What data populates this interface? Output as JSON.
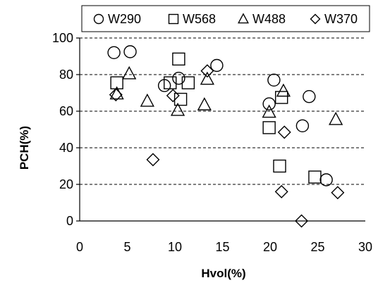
{
  "chart_data": {
    "type": "scatter",
    "xlabel": "Hvol(%)",
    "ylabel": "PCH(%)",
    "xlim": [
      0,
      30
    ],
    "ylim": [
      0,
      100
    ],
    "x_ticks": [
      0,
      5,
      10,
      15,
      20,
      25,
      30
    ],
    "y_ticks": [
      0,
      20,
      40,
      60,
      80,
      100
    ],
    "y_tick_labels": [
      "0",
      "20",
      "40",
      "60",
      "80",
      "100"
    ],
    "x_tick_labels": [
      "0",
      "5",
      "10",
      "15",
      "20",
      "25",
      "30"
    ],
    "grid": "horizontal dashed",
    "legend_position": "top",
    "series": [
      {
        "name": "W290",
        "marker": "circle",
        "points": [
          [
            3.6,
            92
          ],
          [
            5.3,
            92.5
          ],
          [
            8.9,
            74
          ],
          [
            10.4,
            78
          ],
          [
            14.4,
            85
          ],
          [
            19.9,
            64
          ],
          [
            20.4,
            77
          ],
          [
            23.4,
            52
          ],
          [
            24.1,
            68
          ],
          [
            25.9,
            22.5
          ]
        ]
      },
      {
        "name": "W568",
        "marker": "square",
        "points": [
          [
            3.9,
            75.5
          ],
          [
            9.5,
            75.5
          ],
          [
            10.4,
            88.5
          ],
          [
            10.6,
            66.5
          ],
          [
            11.4,
            75.5
          ],
          [
            19.9,
            51
          ],
          [
            21.0,
            30
          ],
          [
            21.2,
            67.5
          ],
          [
            24.7,
            24
          ]
        ]
      },
      {
        "name": "W488",
        "marker": "triangle",
        "points": [
          [
            3.9,
            69.5
          ],
          [
            5.2,
            80.5
          ],
          [
            7.1,
            65.5
          ],
          [
            10.3,
            60.5
          ],
          [
            13.1,
            63.5
          ],
          [
            13.4,
            77.5
          ],
          [
            19.9,
            59.5
          ],
          [
            21.4,
            71
          ],
          [
            26.9,
            55.5
          ]
        ]
      },
      {
        "name": "W370",
        "marker": "diamond",
        "points": [
          [
            3.8,
            69
          ],
          [
            7.7,
            33.5
          ],
          [
            9.8,
            68.5
          ],
          [
            13.4,
            82
          ],
          [
            21.2,
            16
          ],
          [
            21.5,
            48.5
          ],
          [
            23.3,
            0
          ],
          [
            27.1,
            15.5
          ]
        ]
      }
    ]
  }
}
